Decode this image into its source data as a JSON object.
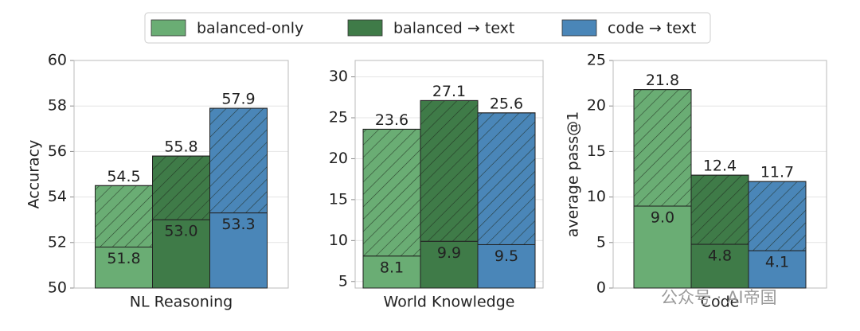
{
  "legend": [
    {
      "name": "balanced-only",
      "color": "#6aad74"
    },
    {
      "name": "balanced → text",
      "color": "#3f7b48"
    },
    {
      "name": "code → text",
      "color": "#4a86b8"
    }
  ],
  "chart_data": [
    {
      "type": "bar",
      "xlabel": "NL Reasoning",
      "ylabel": "Accuracy",
      "ylim": [
        50,
        60
      ],
      "yticks": [
        50,
        52,
        54,
        56,
        58,
        60
      ],
      "grid": true,
      "values": [
        54.5,
        55.8,
        57.9
      ],
      "base_values": [
        51.8,
        53.0,
        53.3
      ],
      "base_value_labels": [
        "51.8",
        "53.0",
        "53.3"
      ]
    },
    {
      "type": "bar",
      "xlabel": "World Knowledge",
      "ylim": [
        4.2,
        32
      ],
      "yticks": [
        5,
        10,
        15,
        20,
        25,
        30
      ],
      "grid": true,
      "values": [
        23.6,
        27.1,
        25.6
      ],
      "base_values": [
        8.1,
        9.9,
        9.5
      ]
    },
    {
      "type": "bar",
      "xlabel": "Code",
      "ylabel": "average pass@1",
      "ylim": [
        0,
        25
      ],
      "yticks": [
        0,
        5,
        10,
        15,
        20,
        25
      ],
      "grid": true,
      "values": [
        21.8,
        12.4,
        11.7
      ],
      "base_values": [
        9.0,
        4.8,
        4.1
      ],
      "base_value_labels": [
        "9.0",
        "4.8",
        "4.1"
      ]
    }
  ],
  "watermark": "公众号 · AI帝国"
}
